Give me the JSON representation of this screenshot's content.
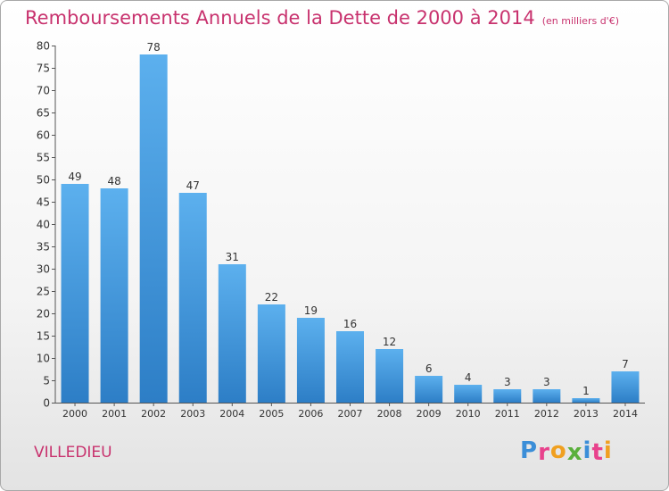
{
  "chart_data": {
    "type": "bar",
    "title": "Remboursements Annuels de la Dette de 2000 à 2014",
    "subtitle": "(en milliers d'€)",
    "categories": [
      "2000",
      "2001",
      "2002",
      "2003",
      "2004",
      "2005",
      "2006",
      "2007",
      "2008",
      "2009",
      "2010",
      "2011",
      "2012",
      "2013",
      "2014"
    ],
    "values": [
      49,
      48,
      78,
      47,
      31,
      22,
      19,
      16,
      12,
      6,
      4,
      3,
      3,
      1,
      7
    ],
    "xlabel": "",
    "ylabel": "",
    "ylim": [
      0,
      80
    ],
    "yticks": [
      0,
      5,
      10,
      15,
      20,
      25,
      30,
      35,
      40,
      45,
      50,
      55,
      60,
      65,
      70,
      75,
      80
    ],
    "grid": false,
    "bar_color": "#3a8fd8"
  },
  "footer": {
    "commune": "VILLEDIEU",
    "logo_letters": [
      {
        "ch": "P",
        "color": "#3b8ed8"
      },
      {
        "ch": "r",
        "color": "#e8428c"
      },
      {
        "ch": "o",
        "color": "#f0a020"
      },
      {
        "ch": "x",
        "color": "#5ab03c"
      },
      {
        "ch": "i",
        "color": "#3b8ed8"
      },
      {
        "ch": "t",
        "color": "#e8428c"
      },
      {
        "ch": "i",
        "color": "#f0a020"
      }
    ]
  }
}
